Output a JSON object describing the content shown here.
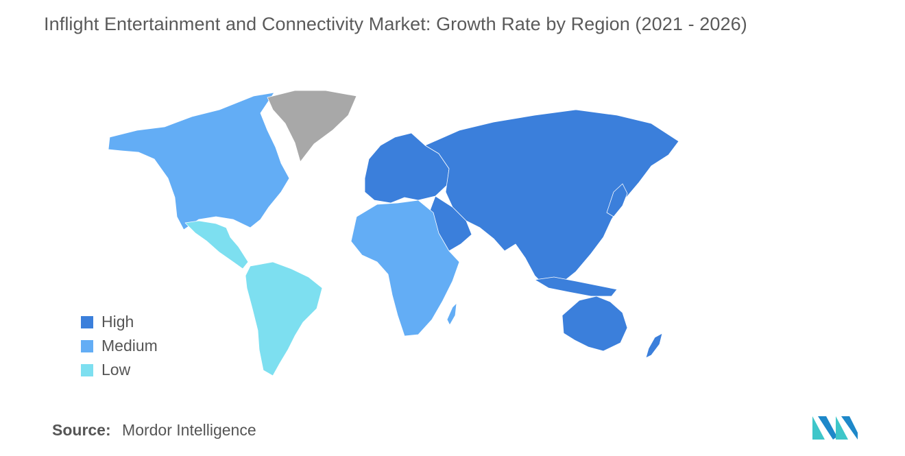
{
  "title": "Inflight Entertainment and Connectivity Market: Growth Rate by Region (2021 - 2026)",
  "colors": {
    "high": "#3b7fdb",
    "medium": "#63adf5",
    "low": "#7ddff0",
    "no_data": "#a8a8a8"
  },
  "legend": {
    "items": [
      {
        "label": "High",
        "level": "high"
      },
      {
        "label": "Medium",
        "level": "medium"
      },
      {
        "label": "Low",
        "level": "low"
      }
    ]
  },
  "regions": [
    {
      "name": "North America",
      "level": "medium"
    },
    {
      "name": "Mexico and Central America",
      "level": "low"
    },
    {
      "name": "South America",
      "level": "low"
    },
    {
      "name": "Europe",
      "level": "high"
    },
    {
      "name": "Asia-Pacific",
      "level": "high"
    },
    {
      "name": "Middle East",
      "level": "high"
    },
    {
      "name": "Africa",
      "level": "medium"
    },
    {
      "name": "Greenland",
      "level": "no_data"
    }
  ],
  "source": {
    "label": "Source:",
    "name": "Mordor Intelligence"
  },
  "logo": {
    "icon": "mordor-intelligence-logo-icon"
  }
}
